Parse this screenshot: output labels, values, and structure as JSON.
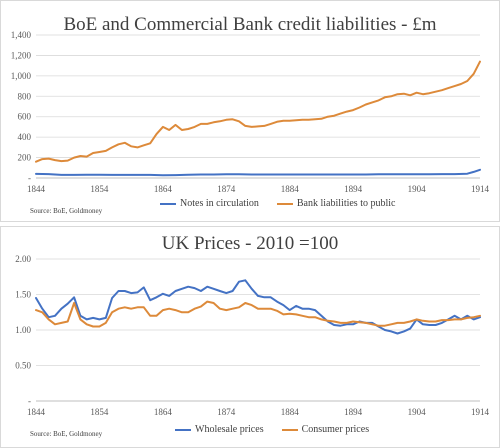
{
  "colors": {
    "blue": "#4472c4",
    "orange": "#dd8a3a",
    "grid": "#d9d9d9",
    "axis": "#bfbfbf"
  },
  "chart_data": [
    {
      "type": "line",
      "title": "BoE and Commercial Bank credit liabilities - £m",
      "source": "Source: BoE, Goldmoney",
      "xlabel": "",
      "ylabel": "",
      "ylim": [
        0,
        1400
      ],
      "y_ticks": [
        0,
        200,
        400,
        600,
        800,
        1000,
        1200,
        1400
      ],
      "y_tick_labels": [
        "-",
        "200",
        "400",
        "600",
        "800",
        "1,000",
        "1,200",
        "1,400"
      ],
      "x_ticks": [
        1844,
        1854,
        1864,
        1874,
        1884,
        1894,
        1904,
        1914
      ],
      "xlim": [
        1844,
        1914
      ],
      "grid": true,
      "legend": "bottom",
      "series": [
        {
          "name": "Notes in circulation",
          "color": "#4472c4",
          "x": [
            1844,
            1846,
            1848,
            1850,
            1852,
            1854,
            1856,
            1858,
            1860,
            1862,
            1864,
            1866,
            1868,
            1870,
            1872,
            1874,
            1876,
            1878,
            1880,
            1882,
            1884,
            1886,
            1888,
            1890,
            1892,
            1894,
            1896,
            1898,
            1900,
            1902,
            1904,
            1906,
            1908,
            1910,
            1912,
            1913,
            1914
          ],
          "y": [
            40,
            38,
            30,
            30,
            32,
            32,
            30,
            30,
            30,
            30,
            26,
            28,
            32,
            34,
            34,
            36,
            36,
            34,
            34,
            34,
            34,
            34,
            34,
            34,
            34,
            34,
            34,
            36,
            36,
            36,
            36,
            36,
            38,
            38,
            42,
            60,
            80
          ]
        },
        {
          "name": "Bank liabilities to public",
          "color": "#dd8a3a",
          "x": [
            1844,
            1845,
            1846,
            1847,
            1848,
            1849,
            1850,
            1851,
            1852,
            1853,
            1854,
            1855,
            1856,
            1857,
            1858,
            1859,
            1860,
            1861,
            1862,
            1863,
            1864,
            1865,
            1866,
            1867,
            1868,
            1869,
            1870,
            1871,
            1872,
            1873,
            1874,
            1875,
            1876,
            1877,
            1878,
            1879,
            1880,
            1881,
            1882,
            1883,
            1884,
            1885,
            1886,
            1887,
            1888,
            1889,
            1890,
            1891,
            1892,
            1893,
            1894,
            1895,
            1896,
            1897,
            1898,
            1899,
            1900,
            1901,
            1902,
            1903,
            1904,
            1905,
            1906,
            1907,
            1908,
            1909,
            1910,
            1911,
            1912,
            1913,
            1914
          ],
          "y": [
            160,
            185,
            190,
            175,
            165,
            170,
            200,
            215,
            210,
            245,
            255,
            265,
            300,
            330,
            345,
            310,
            300,
            320,
            340,
            430,
            500,
            470,
            520,
            470,
            480,
            500,
            530,
            530,
            545,
            555,
            570,
            575,
            555,
            510,
            500,
            505,
            510,
            530,
            550,
            560,
            560,
            565,
            570,
            570,
            575,
            580,
            600,
            610,
            630,
            650,
            665,
            690,
            720,
            740,
            760,
            790,
            800,
            820,
            825,
            810,
            835,
            820,
            830,
            845,
            860,
            880,
            900,
            920,
            950,
            1020,
            1140
          ]
        }
      ]
    },
    {
      "type": "line",
      "title": "UK Prices - 2010 =100",
      "source": "Source: BoE, Goldmoney",
      "xlabel": "",
      "ylabel": "",
      "ylim": [
        0,
        2
      ],
      "y_ticks": [
        0,
        0.5,
        1,
        1.5,
        2
      ],
      "y_tick_labels": [
        "-",
        "0.50",
        "1.00",
        "1.50",
        "2.00"
      ],
      "x_ticks": [
        1844,
        1854,
        1864,
        1874,
        1884,
        1894,
        1904,
        1914
      ],
      "xlim": [
        1844,
        1914
      ],
      "grid": true,
      "legend": "bottom",
      "series": [
        {
          "name": "Wholesale prices",
          "color": "#4472c4",
          "x": [
            1844,
            1845,
            1846,
            1847,
            1848,
            1849,
            1850,
            1851,
            1852,
            1853,
            1854,
            1855,
            1856,
            1857,
            1858,
            1859,
            1860,
            1861,
            1862,
            1863,
            1864,
            1865,
            1866,
            1867,
            1868,
            1869,
            1870,
            1871,
            1872,
            1873,
            1874,
            1875,
            1876,
            1877,
            1878,
            1879,
            1880,
            1881,
            1882,
            1883,
            1884,
            1885,
            1886,
            1887,
            1888,
            1889,
            1890,
            1891,
            1892,
            1893,
            1894,
            1895,
            1896,
            1897,
            1898,
            1899,
            1900,
            1901,
            1902,
            1903,
            1904,
            1905,
            1906,
            1907,
            1908,
            1909,
            1910,
            1911,
            1912,
            1913,
            1914
          ],
          "y": [
            1.45,
            1.3,
            1.18,
            1.2,
            1.3,
            1.37,
            1.46,
            1.2,
            1.15,
            1.17,
            1.15,
            1.17,
            1.45,
            1.55,
            1.55,
            1.52,
            1.53,
            1.6,
            1.42,
            1.46,
            1.51,
            1.48,
            1.55,
            1.58,
            1.61,
            1.59,
            1.55,
            1.61,
            1.58,
            1.55,
            1.52,
            1.55,
            1.68,
            1.7,
            1.58,
            1.48,
            1.46,
            1.46,
            1.4,
            1.35,
            1.28,
            1.34,
            1.3,
            1.3,
            1.28,
            1.2,
            1.12,
            1.07,
            1.06,
            1.08,
            1.08,
            1.12,
            1.1,
            1.1,
            1.05,
            1.0,
            0.98,
            0.95,
            0.98,
            1.02,
            1.15,
            1.08,
            1.07,
            1.07,
            1.1,
            1.15,
            1.2,
            1.15,
            1.2,
            1.15,
            1.18
          ]
        },
        {
          "name": "Consumer prices",
          "color": "#dd8a3a",
          "x": [
            1844,
            1845,
            1846,
            1847,
            1848,
            1849,
            1850,
            1851,
            1852,
            1853,
            1854,
            1855,
            1856,
            1857,
            1858,
            1859,
            1860,
            1861,
            1862,
            1863,
            1864,
            1865,
            1866,
            1867,
            1868,
            1869,
            1870,
            1871,
            1872,
            1873,
            1874,
            1875,
            1876,
            1877,
            1878,
            1879,
            1880,
            1881,
            1882,
            1883,
            1884,
            1885,
            1886,
            1887,
            1888,
            1889,
            1890,
            1891,
            1892,
            1893,
            1894,
            1895,
            1896,
            1897,
            1898,
            1899,
            1900,
            1901,
            1902,
            1903,
            1904,
            1905,
            1906,
            1907,
            1908,
            1909,
            1910,
            1911,
            1912,
            1913,
            1914
          ],
          "y": [
            1.28,
            1.25,
            1.15,
            1.08,
            1.1,
            1.12,
            1.38,
            1.15,
            1.08,
            1.05,
            1.05,
            1.1,
            1.25,
            1.3,
            1.32,
            1.3,
            1.32,
            1.32,
            1.2,
            1.2,
            1.28,
            1.3,
            1.28,
            1.25,
            1.25,
            1.3,
            1.33,
            1.4,
            1.38,
            1.3,
            1.28,
            1.3,
            1.32,
            1.38,
            1.35,
            1.3,
            1.3,
            1.3,
            1.27,
            1.22,
            1.23,
            1.22,
            1.2,
            1.18,
            1.18,
            1.15,
            1.13,
            1.12,
            1.1,
            1.1,
            1.12,
            1.11,
            1.1,
            1.08,
            1.06,
            1.06,
            1.08,
            1.1,
            1.1,
            1.12,
            1.15,
            1.13,
            1.12,
            1.12,
            1.14,
            1.14,
            1.15,
            1.15,
            1.17,
            1.18,
            1.2
          ]
        }
      ]
    }
  ]
}
